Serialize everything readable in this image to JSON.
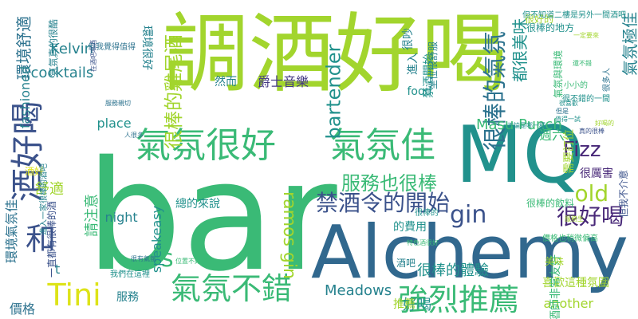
{
  "colors": {
    "lime": "#a2d52d",
    "lightgreen": "#5ec962",
    "green": "#3aba76",
    "teal": "#21918c",
    "tealdark": "#26828e",
    "blue": "#2c728e",
    "slate": "#31688e",
    "navy": "#3b528b",
    "indigo": "#443983",
    "purple": "#482878",
    "yellow": "#dde318",
    "mint": "#2ab07f"
  },
  "words": [
    "bar",
    "Alchemy",
    "調酒好喝",
    "MQ",
    "氣氛很好",
    "氣氛佳",
    "酒好喝",
    "氣氛不錯",
    "強烈推薦",
    "Tini",
    "和",
    "s",
    "很棒的氣氛",
    "gin",
    "禁酒令的開始",
    "old",
    "很好喝",
    "Fizz",
    "服務也很棒",
    "bartender",
    "很棒的雞尾酒",
    "爵士音樂",
    "Masu Punch",
    "ramos gin",
    "Meadows",
    "環境舒適",
    "cocktails",
    "Kelvin",
    "fashioned",
    "舒適",
    "價格",
    "another",
    "好喝",
    "推薦",
    "night",
    "place",
    "請注意",
    "speakeasy",
    "服務",
    "環境很好",
    "氣氛極佳",
    "都很美味",
    "很棒的體驗",
    "喜歡這種氛圍",
    "需要訂位",
    "但我不介意",
    "進入",
    "food",
    "禁酒開始",
    "氣氛真的很酷",
    "然而",
    "酒好",
    "環境氣氛佳",
    "一直都有很棒的酒",
    "坐位很舒服",
    "很吵",
    "總的來說",
    "的費用",
    "很厲害",
    "調酒師非常友好",
    "很棒的飲料",
    "週六",
    "美味",
    "很好的",
    "酒吧",
    "t",
    "進入一家很棒的酒吧",
    "很棒的地方",
    "氣氛與環境",
    "我們在這裡",
    "但不知道二樓是另外一間酒吧",
    "但我覺得值得",
    "價格也稍微偏高",
    "在酒吧喝酒",
    "很多人",
    "很不錯的一間",
    "服務生",
    "小小的",
    "特色酒很好",
    "一定要來",
    "很棒的",
    "服務親切",
    "不論是哪一種",
    "很喜歡",
    "還不錯",
    "人很多",
    "好喝的",
    "真的很棒",
    "但是",
    "值得一試",
    "很有氣氛",
    "位置不好找"
  ]
}
